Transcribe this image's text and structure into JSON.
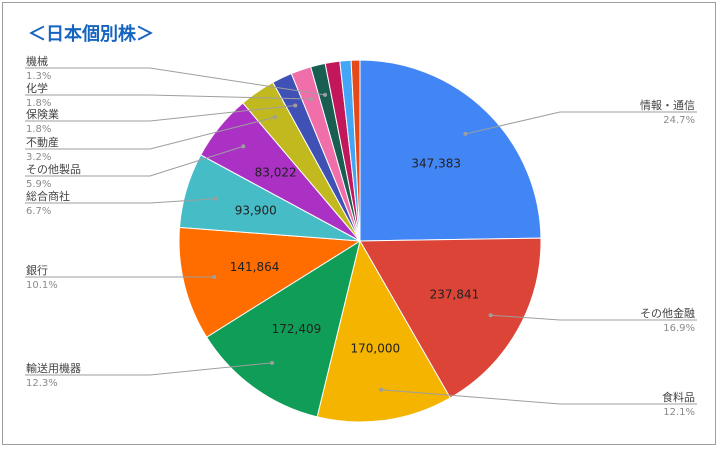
{
  "chart_data": {
    "type": "pie",
    "title": "＜日本個別株＞",
    "slices": [
      {
        "label": "情報・通信",
        "value": 347383,
        "value_label": "347,383",
        "pct_label": "24.7%",
        "color": "#4285f4"
      },
      {
        "label": "その他金融",
        "value": 237841,
        "value_label": "237,841",
        "pct_label": "16.9%",
        "color": "#db4437"
      },
      {
        "label": "食料品",
        "value": 170000,
        "value_label": "170,000",
        "pct_label": "12.1%",
        "color": "#f4b400"
      },
      {
        "label": "輸送用機器",
        "value": 172409,
        "value_label": "172,409",
        "pct_label": "12.3%",
        "color": "#0f9d58"
      },
      {
        "label": "銀行",
        "value": 141864,
        "value_label": "141,864",
        "pct_label": "10.1%",
        "color": "#ff6d00"
      },
      {
        "label": "総合商社",
        "value": 93900,
        "value_label": "93,900",
        "pct_label": "6.7%",
        "color": "#46bdc6"
      },
      {
        "label": "その他製品",
        "value": 83022,
        "value_label": "83,022",
        "pct_label": "5.9%",
        "color": "#ab30c4"
      },
      {
        "label": "不動産",
        "value": 45000,
        "value_label": "",
        "pct_label": "3.2%",
        "color": "#c2b91f"
      },
      {
        "label": "保険業",
        "value": 25300,
        "value_label": "",
        "pct_label": "1.8%",
        "color": "#3f51b5"
      },
      {
        "label": "化学",
        "value": 25300,
        "value_label": "",
        "pct_label": "1.8%",
        "color": "#f06eaa"
      },
      {
        "label": "機械",
        "value": 18300,
        "value_label": "",
        "pct_label": "1.3%",
        "color": "#185e51"
      },
      {
        "label": "",
        "value": 18300,
        "value_label": "",
        "pct_label": "",
        "color": "#c2185b"
      },
      {
        "label": "",
        "value": 14000,
        "value_label": "",
        "pct_label": "",
        "color": "#42a5f5"
      },
      {
        "label": "",
        "value": 11000,
        "value_label": "",
        "pct_label": "",
        "color": "#e64a19"
      }
    ]
  }
}
